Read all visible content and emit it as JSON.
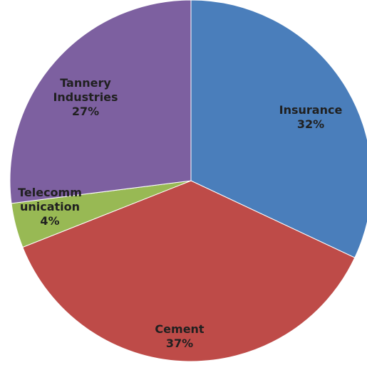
{
  "chart_data": {
    "type": "pie",
    "title": "",
    "slices": [
      {
        "label_lines": [
          "Insurance"
        ],
        "percent_label": "32%",
        "value": 32,
        "color": "#4A7EBB"
      },
      {
        "label_lines": [
          "Cement"
        ],
        "percent_label": "37%",
        "value": 37,
        "color": "#BE4B48"
      },
      {
        "label_lines": [
          "Telecomm",
          "unication"
        ],
        "percent_label": "4%",
        "value": 4,
        "color": "#98B954"
      },
      {
        "label_lines": [
          "Tannery",
          "Industries"
        ],
        "percent_label": "27%",
        "value": 27,
        "color": "#7D60A0"
      }
    ],
    "legend": "none"
  }
}
